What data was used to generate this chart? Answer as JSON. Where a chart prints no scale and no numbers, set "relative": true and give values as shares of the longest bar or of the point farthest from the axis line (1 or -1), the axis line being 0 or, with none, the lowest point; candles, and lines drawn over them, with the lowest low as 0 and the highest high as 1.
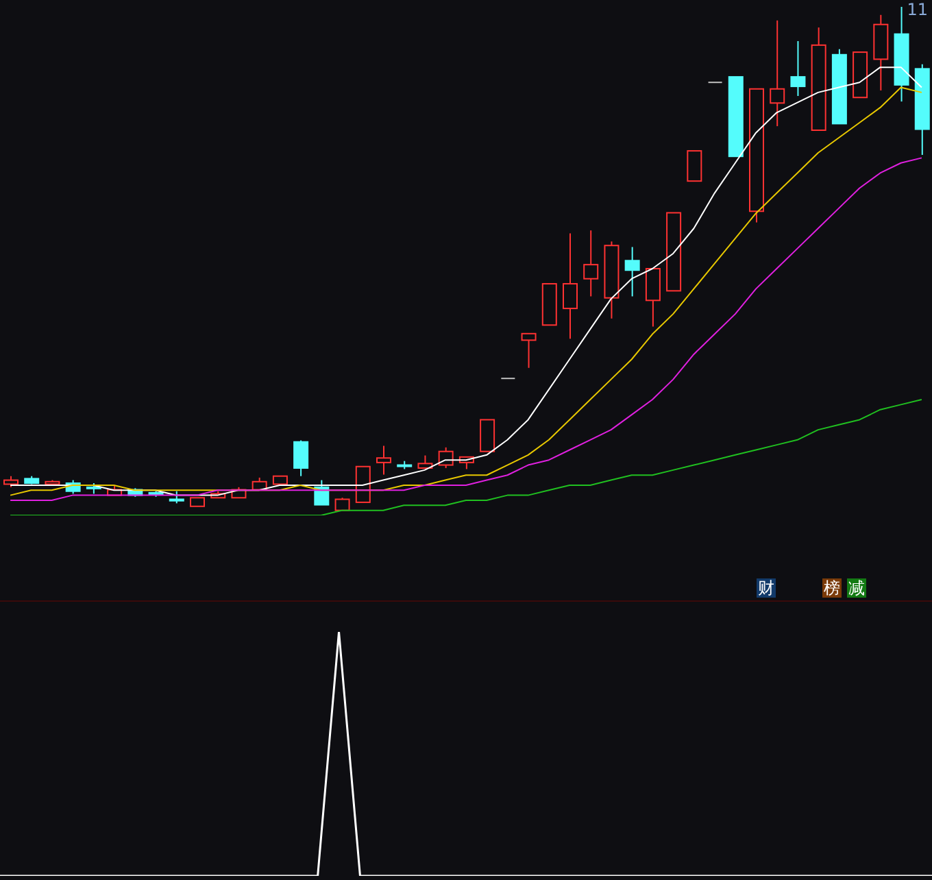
{
  "chart_data": [
    {
      "type": "candlestick",
      "relative": true,
      "categories": [
        null,
        null,
        null,
        null,
        null,
        null,
        null,
        null,
        null,
        null,
        null,
        null,
        null,
        null,
        null,
        null,
        null,
        null,
        null,
        null,
        null,
        null,
        null,
        null,
        null,
        null,
        null,
        null,
        null,
        null,
        null,
        null,
        null,
        null,
        null,
        null,
        null,
        null,
        null,
        null,
        null,
        null,
        null,
        null,
        null
      ],
      "ohlc": [
        [
          0.052,
          0.068,
          0.046,
          0.06
        ],
        [
          0.063,
          0.068,
          0.052,
          0.054
        ],
        [
          0.052,
          0.06,
          0.049,
          0.057
        ],
        [
          0.054,
          0.06,
          0.033,
          0.038
        ],
        [
          0.046,
          0.054,
          0.033,
          0.044
        ],
        [
          0.03,
          0.049,
          0.03,
          0.041
        ],
        [
          0.041,
          0.044,
          0.027,
          0.03
        ],
        [
          0.035,
          0.038,
          0.027,
          0.033
        ],
        [
          0.022,
          0.038,
          0.014,
          0.019
        ],
        [
          0.008,
          0.025,
          0.008,
          0.025
        ],
        [
          0.025,
          0.038,
          0.025,
          0.033
        ],
        [
          0.025,
          0.046,
          0.025,
          0.041
        ],
        [
          0.041,
          0.065,
          0.041,
          0.057
        ],
        [
          0.052,
          0.068,
          0.052,
          0.068
        ],
        [
          0.136,
          0.139,
          0.068,
          0.084
        ],
        [
          0.046,
          0.06,
          0.011,
          0.011
        ],
        [
          0,
          0.025,
          0,
          0.022
        ],
        [
          0.016,
          0.087,
          0.016,
          0.087
        ],
        [
          0.095,
          0.128,
          0.071,
          0.104
        ],
        [
          0.09,
          0.098,
          0.082,
          0.089
        ],
        [
          0.084,
          0.109,
          0.084,
          0.093
        ],
        [
          0.09,
          0.125,
          0.084,
          0.117
        ],
        [
          0.095,
          0.106,
          0.082,
          0.106
        ],
        [
          0.117,
          0.18,
          0.117,
          0.18
        ],
        [
          0.262,
          0.262,
          0.262,
          0.262
        ],
        [
          0.338,
          0.351,
          0.283,
          0.351
        ],
        [
          0.368,
          0.45,
          0.368,
          0.45
        ],
        [
          0.401,
          0.55,
          0.341,
          0.45
        ],
        [
          0.46,
          0.556,
          0.425,
          0.488
        ],
        [
          0.422,
          0.534,
          0.381,
          0.526
        ],
        [
          0.496,
          0.523,
          0.425,
          0.477
        ],
        [
          0.417,
          0.48,
          0.365,
          0.48
        ],
        [
          0.436,
          0.591,
          0.436,
          0.591
        ],
        [
          0.654,
          0.714,
          0.654,
          0.714
        ],
        [
          0.85,
          0.85,
          0.85,
          0.85
        ],
        [
          0.861,
          0.861,
          0.703,
          0.703
        ],
        [
          0.594,
          0.837,
          0.572,
          0.837
        ],
        [
          0.809,
          0.973,
          0.763,
          0.837
        ],
        [
          0.861,
          0.932,
          0.823,
          0.842
        ],
        [
          0.755,
          0.959,
          0.755,
          0.924
        ],
        [
          0.905,
          0.916,
          0.768,
          0.768
        ],
        [
          0.82,
          0.91,
          0.82,
          0.91
        ],
        [
          0.896,
          0.984,
          0.834,
          0.965
        ],
        [
          0.946,
          1,
          0.812,
          0.845
        ],
        [
          0.877,
          0.886,
          0.706,
          0.757
        ]
      ],
      "colors": [
        "#ff3232",
        "#54fcfc",
        "#ff3232",
        "#54fcfc",
        "#54fcfc",
        "#ff3232",
        "#54fcfc",
        "#54fcfc",
        "#54fcfc",
        "#ff3232",
        "#ff3232",
        "#ff3232",
        "#ff3232",
        "#ff3232",
        "#54fcfc",
        "#54fcfc",
        "#ff3232",
        "#ff3232",
        "#ff3232",
        "#54fcfc",
        "#ff3232",
        "#ff3232",
        "#ff3232",
        "#ff3232",
        "#c0c0c0",
        "#ff3232",
        "#ff3232",
        "#ff3232",
        "#ff3232",
        "#ff3232",
        "#54fcfc",
        "#ff3232",
        "#ff3232",
        "#ff3232",
        "#c0c0c0",
        "#54fcfc",
        "#ff3232",
        "#ff3232",
        "#54fcfc",
        "#ff3232",
        "#54fcfc",
        "#ff3232",
        "#ff3232",
        "#54fcfc",
        "#54fcfc"
      ],
      "series": [
        {
          "type": "line",
          "color": "#ffffff",
          "values": [
            0.05,
            0.05,
            0.05,
            0.05,
            0.05,
            0.04,
            0.04,
            0.04,
            0.03,
            0.03,
            0.03,
            0.04,
            0.04,
            0.05,
            0.05,
            0.05,
            0.05,
            0.05,
            0.06,
            0.07,
            0.08,
            0.1,
            0.1,
            0.11,
            0.14,
            0.18,
            0.24,
            0.3,
            0.36,
            0.42,
            0.46,
            0.48,
            0.51,
            0.56,
            0.63,
            0.69,
            0.75,
            0.79,
            0.81,
            0.83,
            0.84,
            0.85,
            0.88,
            0.88,
            0.84
          ]
        },
        {
          "type": "line",
          "color": "#e8c800",
          "values": [
            0.03,
            0.04,
            0.04,
            0.05,
            0.05,
            0.05,
            0.04,
            0.04,
            0.04,
            0.04,
            0.04,
            0.04,
            0.04,
            0.04,
            0.05,
            0.04,
            0.04,
            0.04,
            0.04,
            0.05,
            0.05,
            0.06,
            0.07,
            0.07,
            0.09,
            0.11,
            0.14,
            0.18,
            0.22,
            0.26,
            0.3,
            0.35,
            0.39,
            0.44,
            0.49,
            0.54,
            0.59,
            0.63,
            0.67,
            0.71,
            0.74,
            0.77,
            0.8,
            0.84,
            0.83
          ]
        },
        {
          "type": "line",
          "color": "#e020e0",
          "values": [
            0.02,
            0.02,
            0.02,
            0.03,
            0.03,
            0.03,
            0.03,
            0.03,
            0.03,
            0.03,
            0.04,
            0.04,
            0.04,
            0.04,
            0.04,
            0.04,
            0.04,
            0.04,
            0.04,
            0.04,
            0.05,
            0.05,
            0.05,
            0.06,
            0.07,
            0.09,
            0.1,
            0.12,
            0.14,
            0.16,
            0.19,
            0.22,
            0.26,
            0.31,
            0.35,
            0.39,
            0.44,
            0.48,
            0.52,
            0.56,
            0.6,
            0.64,
            0.67,
            0.69,
            0.7
          ]
        },
        {
          "type": "line",
          "color": "#20c020",
          "values": [
            -0.01,
            -0.01,
            -0.01,
            -0.01,
            -0.01,
            -0.01,
            -0.01,
            -0.01,
            -0.01,
            -0.01,
            -0.01,
            -0.01,
            -0.01,
            -0.01,
            -0.01,
            -0.01,
            0.0,
            0.0,
            0.0,
            0.01,
            0.01,
            0.01,
            0.02,
            0.02,
            0.03,
            0.03,
            0.04,
            0.05,
            0.05,
            0.06,
            0.07,
            0.07,
            0.08,
            0.09,
            0.1,
            0.11,
            0.12,
            0.13,
            0.14,
            0.16,
            0.17,
            0.18,
            0.2,
            0.21,
            0.22
          ]
        }
      ],
      "annotations": [
        "11",
        "财",
        "榜",
        "减"
      ]
    },
    {
      "type": "line",
      "relative": true,
      "color": "#ffffff",
      "categories": [
        null,
        null,
        null,
        null,
        null,
        null,
        null,
        null,
        null,
        null,
        null,
        null,
        null,
        null,
        null,
        null,
        null,
        null,
        null,
        null,
        null,
        null,
        null,
        null,
        null,
        null,
        null,
        null,
        null,
        null,
        null,
        null,
        null,
        null,
        null,
        null,
        null,
        null,
        null,
        null,
        null,
        null,
        null,
        null,
        null
      ],
      "values": [
        0,
        0,
        0,
        0,
        0,
        0,
        0,
        0,
        0,
        0,
        0,
        0,
        0,
        0,
        0,
        0,
        1,
        0,
        0,
        0,
        0,
        0,
        0,
        0,
        0,
        0,
        0,
        0,
        0,
        0,
        0,
        0,
        0,
        0,
        0,
        0,
        0,
        0,
        0,
        0,
        0,
        0,
        0,
        0,
        0
      ]
    }
  ]
}
